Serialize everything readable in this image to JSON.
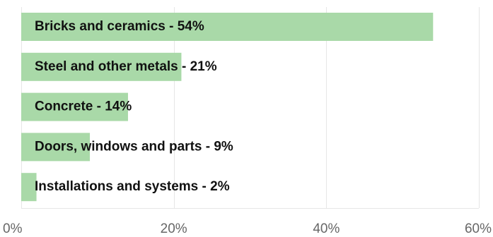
{
  "chart_data": {
    "type": "bar",
    "orientation": "horizontal",
    "categories": [
      "Bricks and ceramics",
      "Steel and other metals",
      "Concrete",
      "Doors, windows and parts",
      "Installations and systems"
    ],
    "values": [
      54,
      21,
      14,
      9,
      2
    ],
    "labels": [
      "Bricks and ceramics - 54%",
      "Steel and other metals - 21%",
      "Concrete - 14%",
      "Doors, windows and parts - 9%",
      "Installations and systems - 2%"
    ],
    "xlim": [
      0,
      60
    ],
    "xticks": [
      0,
      20,
      40,
      60
    ],
    "xtick_labels": [
      "0%",
      "20%",
      "40%",
      "60%"
    ],
    "grid": true,
    "bar_color": "#a9d9a8",
    "title": "",
    "xlabel": "",
    "ylabel": ""
  }
}
